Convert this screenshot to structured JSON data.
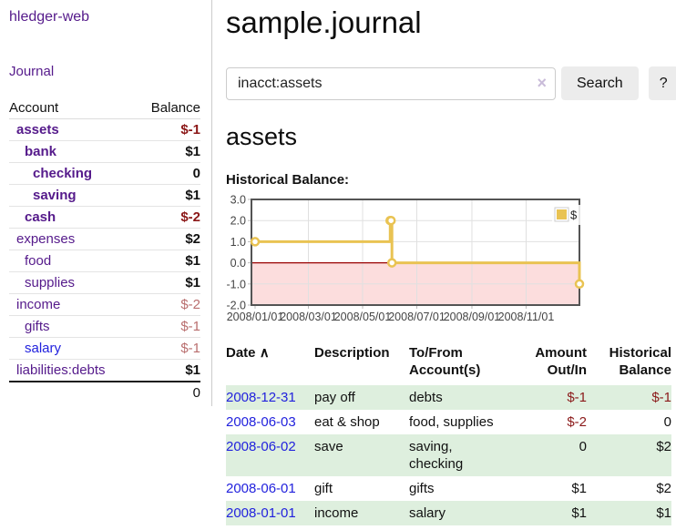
{
  "colors": {
    "link_purple": "#551a8b",
    "link_blue": "#2222dd",
    "negative_strong": "#8b1717",
    "negative_soft": "#b96e6e",
    "row_highlight_green": "#deefde",
    "chart_line_gold": "#e9c353",
    "chart_negative_fill": "#fcdddd",
    "chart_zero_line": "#990000"
  },
  "sidebar": {
    "app_title": "hledger-web",
    "nav_journal": "Journal",
    "accounts": {
      "col_account": "Account",
      "col_balance": "Balance",
      "rows": [
        {
          "name": "assets",
          "depth": 0,
          "bold": true,
          "balance": "$-1",
          "neg": "strong"
        },
        {
          "name": "bank",
          "depth": 1,
          "bold": true,
          "balance": "$1"
        },
        {
          "name": "checking",
          "depth": 2,
          "bold": true,
          "balance": "0"
        },
        {
          "name": "saving",
          "depth": 2,
          "bold": true,
          "balance": "$1"
        },
        {
          "name": "cash",
          "depth": 1,
          "bold": true,
          "balance": "$-2",
          "neg": "strong"
        },
        {
          "name": "expenses",
          "depth": 0,
          "bold": false,
          "balance": "$2"
        },
        {
          "name": "food",
          "depth": 1,
          "bold": false,
          "balance": "$1"
        },
        {
          "name": "supplies",
          "depth": 1,
          "bold": false,
          "balance": "$1"
        },
        {
          "name": "income",
          "depth": 0,
          "bold": false,
          "balance": "$-2",
          "neg": "soft"
        },
        {
          "name": "gifts",
          "depth": 1,
          "bold": false,
          "balance": "$-1",
          "neg": "soft"
        },
        {
          "name": "salary",
          "depth": 1,
          "bold": false,
          "balance": "$-1",
          "neg": "soft",
          "blue": true
        },
        {
          "name": "liabilities:debts",
          "depth": 0,
          "bold": false,
          "balance": "$1"
        }
      ],
      "total": "0"
    }
  },
  "main": {
    "page_title": "sample.journal",
    "search": {
      "value": "inacct:assets",
      "clear_icon": "×",
      "button_label": "Search",
      "help_label": "?"
    },
    "section_title": "assets",
    "chart_title": "Historical Balance:",
    "chart_data": {
      "type": "line",
      "title": "Historical Balance",
      "step": true,
      "legend": {
        "label": "$",
        "position": "top-right"
      },
      "series": [
        {
          "name": "$",
          "color": "#e9c353",
          "points": [
            [
              "2008-01-01",
              1
            ],
            [
              "2008-06-01",
              2
            ],
            [
              "2008-06-02",
              2
            ],
            [
              "2008-06-03",
              0
            ],
            [
              "2008-12-31",
              -1
            ]
          ]
        }
      ],
      "xlim": [
        "2008-01-01",
        "2008-12-31"
      ],
      "ylim": [
        -2,
        3
      ],
      "x_ticks": [
        {
          "d": "2008-01-01",
          "label": "2008/01/01"
        },
        {
          "d": "2008-03-01",
          "label": "2008/03/01"
        },
        {
          "d": "2008-05-01",
          "label": "2008/05/01"
        },
        {
          "d": "2008-07-01",
          "label": "2008/07/01"
        },
        {
          "d": "2008-09-01",
          "label": "2008/09/01"
        },
        {
          "d": "2008-11-01",
          "label": "2008/11/01"
        }
      ],
      "y_ticks": [
        {
          "v": 3,
          "label": "3.0"
        },
        {
          "v": 2,
          "label": "2.0"
        },
        {
          "v": 1,
          "label": "1.0"
        },
        {
          "v": 0,
          "label": "0.0"
        },
        {
          "v": -1,
          "label": "-1.0"
        },
        {
          "v": -2,
          "label": "-2.0"
        }
      ],
      "grid": true,
      "negative_region_fill": "#fcdddd",
      "zero_line_color": "#990000"
    },
    "register": {
      "headers": {
        "date": "Date",
        "sort_icon": "∧",
        "description": "Description",
        "accounts": "To/From Account(s)",
        "amount": "Amount Out/In",
        "balance": "Historical Balance"
      },
      "rows": [
        {
          "date": "2008-12-31",
          "description": "pay off",
          "accounts": "debts",
          "amount": "$-1",
          "amount_neg": true,
          "balance": "$-1",
          "balance_neg": true,
          "highlight": true
        },
        {
          "date": "2008-06-03",
          "description": "eat & shop",
          "accounts": "food, supplies",
          "amount": "$-2",
          "amount_neg": true,
          "balance": "0",
          "balance_neg": false,
          "highlight": false
        },
        {
          "date": "2008-06-02",
          "description": "save",
          "accounts": "saving, checking",
          "amount": "0",
          "amount_neg": false,
          "balance": "$2",
          "balance_neg": false,
          "highlight": true
        },
        {
          "date": "2008-06-01",
          "description": "gift",
          "accounts": "gifts",
          "amount": "$1",
          "amount_neg": false,
          "balance": "$2",
          "balance_neg": false,
          "highlight": false
        },
        {
          "date": "2008-01-01",
          "description": "income",
          "accounts": "salary",
          "amount": "$1",
          "amount_neg": false,
          "balance": "$1",
          "balance_neg": false,
          "highlight": true
        }
      ]
    }
  }
}
